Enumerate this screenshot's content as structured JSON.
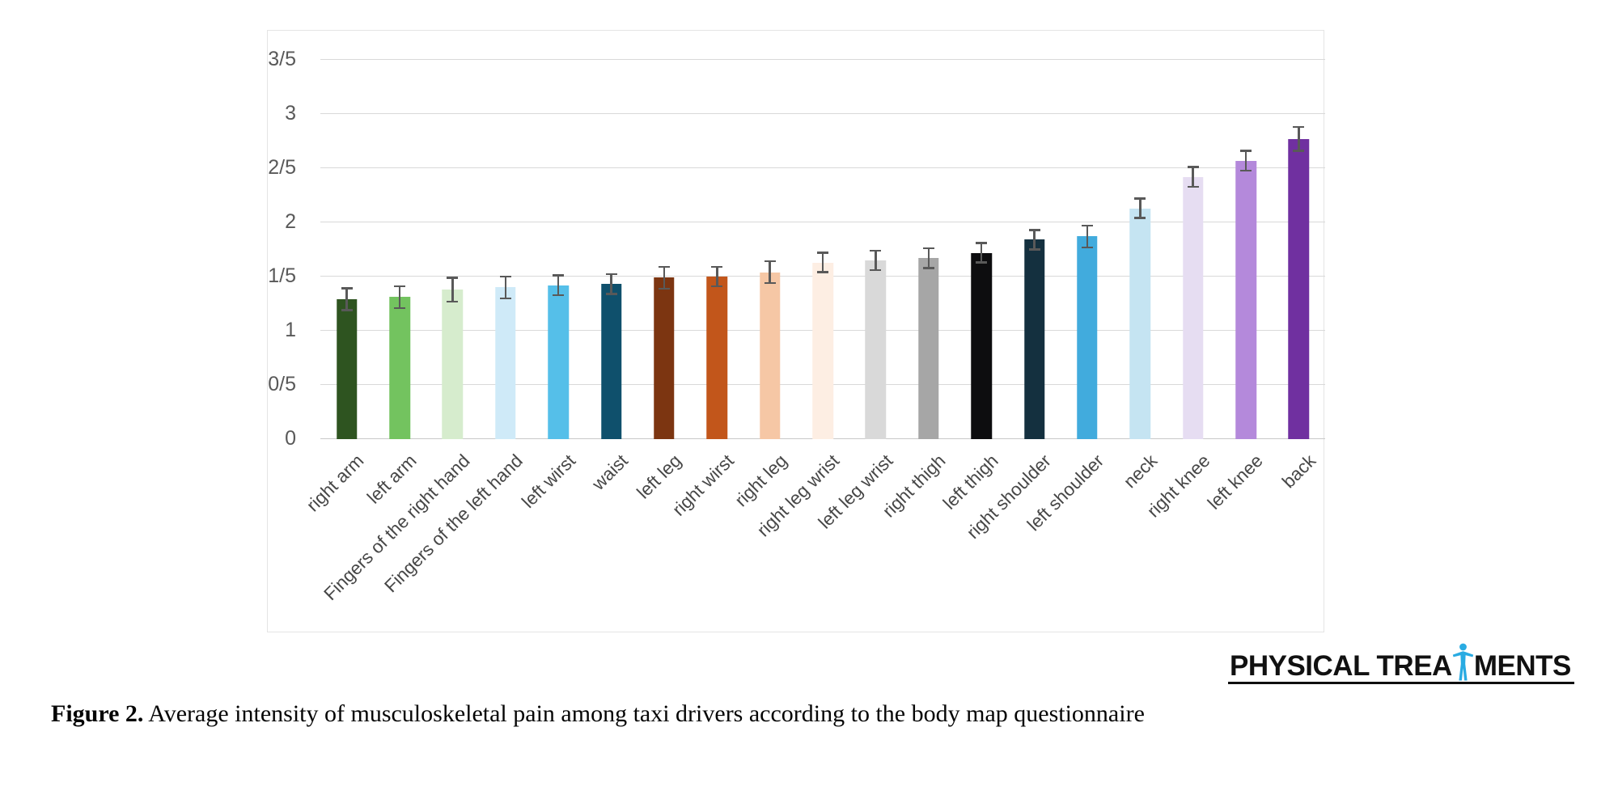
{
  "figure": {
    "caption_label": "Figure 2.",
    "caption_text": " Average intensity of musculoskeletal pain among taxi drivers according to the body map questionnaire"
  },
  "logo": {
    "text_left": "PHYSICAL TREA",
    "text_right": "MENTS",
    "icon": "person-icon",
    "icon_color": "#29abe2",
    "underline_color": "#0e0e0e"
  },
  "chart_data": {
    "type": "bar",
    "title": "",
    "xlabel": "",
    "ylabel": "",
    "categories": [
      "right arm",
      "left arm",
      "Fingers of the right hand",
      "Fingers of the left hand",
      "left wirst",
      "waist",
      "left leg",
      "right wirst",
      "right leg",
      "right leg wrist",
      "left leg wrist",
      "right thigh",
      "left thigh",
      "right shoulder",
      "left shoulder",
      "neck",
      "right knee",
      "left knee",
      "back"
    ],
    "values": [
      1.29,
      1.31,
      1.38,
      1.4,
      1.42,
      1.43,
      1.49,
      1.5,
      1.54,
      1.63,
      1.65,
      1.67,
      1.72,
      1.84,
      1.87,
      2.13,
      2.42,
      2.57,
      2.77
    ],
    "error_bars": [
      0.11,
      0.11,
      0.12,
      0.11,
      0.1,
      0.1,
      0.11,
      0.1,
      0.11,
      0.1,
      0.1,
      0.1,
      0.1,
      0.1,
      0.11,
      0.1,
      0.1,
      0.1,
      0.12
    ],
    "bar_colors": [
      "#2e5420",
      "#73c35f",
      "#d6eccd",
      "#cfeaf8",
      "#55bfe9",
      "#0f506c",
      "#7c3511",
      "#c2561b",
      "#f6c7a5",
      "#fdeee3",
      "#d9d9d9",
      "#a6a6a6",
      "#0d0d0f",
      "#14303f",
      "#41abdd",
      "#c5e4f2",
      "#e6ddf2",
      "#b489db",
      "#7030a0"
    ],
    "ylim": [
      0,
      3.5
    ],
    "y_ticks": [
      {
        "value": 0.0,
        "label": "0"
      },
      {
        "value": 0.5,
        "label": "0/5"
      },
      {
        "value": 1.0,
        "label": "1"
      },
      {
        "value": 1.5,
        "label": "1/5"
      },
      {
        "value": 2.0,
        "label": "2"
      },
      {
        "value": 2.5,
        "label": "2/5"
      },
      {
        "value": 3.0,
        "label": "3"
      },
      {
        "value": 3.5,
        "label": "3/5"
      }
    ],
    "tick_decimal_separator": "/",
    "grid": true,
    "gridline_color": "#d9d9d9",
    "tick_label_color": "#595959",
    "x_label_color": "#474747",
    "error_bar_color": "#595959",
    "legend": "none",
    "x_label_rotation_deg": -45
  }
}
